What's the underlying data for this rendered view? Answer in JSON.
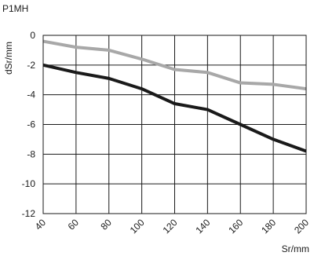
{
  "chart_data": {
    "type": "line",
    "title": "P1MH",
    "xlabel": "Sr/mm",
    "ylabel": "dSr/mm",
    "x": [
      40,
      60,
      80,
      100,
      120,
      140,
      160,
      180,
      200
    ],
    "xlim": [
      40,
      200
    ],
    "ylim": [
      -12,
      0
    ],
    "xticks": [
      "40",
      "60",
      "80",
      "100",
      "120",
      "140",
      "160",
      "180",
      "200"
    ],
    "yticks": [
      "0",
      "-2",
      "-4",
      "-6",
      "-8",
      "-10",
      "-12"
    ],
    "grid": true,
    "series": [
      {
        "color": "#a8a8a8",
        "values": [
          -0.4,
          -0.8,
          -1.0,
          -1.6,
          -2.3,
          -2.5,
          -3.2,
          -3.3,
          -3.6
        ]
      },
      {
        "color": "#1a1a1a",
        "values": [
          -2.0,
          -2.5,
          -2.9,
          -3.6,
          -4.6,
          -5.0,
          -6.0,
          -7.0,
          -7.8
        ]
      }
    ]
  }
}
